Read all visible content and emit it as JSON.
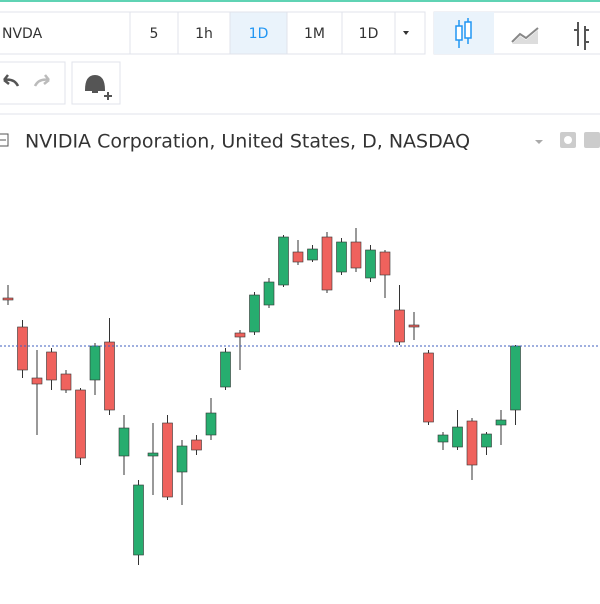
{
  "toolbar": {
    "symbol": "NVDA",
    "intervals": [
      "5",
      "1h",
      "1D",
      "1M",
      "1D"
    ],
    "active_interval": 2
  },
  "chart_data": {
    "type": "candlestick",
    "title": "NVIDIA Corporation, United States, D, NASDAQ",
    "open": [
      302,
      273,
      222,
      248,
      226,
      210,
      220,
      258,
      144,
      45,
      144,
      177,
      128,
      160,
      165,
      213,
      267,
      268,
      295,
      315,
      348,
      340,
      363,
      328,
      358,
      322,
      348,
      290,
      275,
      247,
      158,
      153,
      179,
      153,
      175,
      190
    ],
    "high": [
      315,
      280,
      250,
      252,
      230,
      212,
      257,
      282,
      185,
      120,
      177,
      185,
      160,
      165,
      202,
      252,
      270,
      308,
      322,
      365,
      360,
      355,
      368,
      362,
      372,
      355,
      350,
      315,
      288,
      250,
      168,
      190,
      182,
      168,
      190,
      255
    ],
    "low": [
      295,
      222,
      165,
      210,
      207,
      135,
      205,
      185,
      125,
      35,
      105,
      100,
      95,
      145,
      160,
      210,
      230,
      265,
      292,
      313,
      335,
      338,
      307,
      325,
      328,
      318,
      302,
      255,
      260,
      175,
      150,
      150,
      120,
      145,
      155,
      175
    ],
    "close": [
      301,
      230,
      216,
      220,
      210,
      142,
      254,
      190,
      172,
      115,
      147,
      103,
      154,
      150,
      187,
      248,
      263,
      305,
      318,
      363,
      338,
      351,
      310,
      358,
      332,
      350,
      325,
      258,
      274,
      178,
      165,
      173,
      135,
      166,
      180,
      254
    ],
    "up_color": "#27ad6f",
    "down_color": "#ef625d",
    "ylim": [
      0,
      440
    ],
    "last_price": 254
  }
}
